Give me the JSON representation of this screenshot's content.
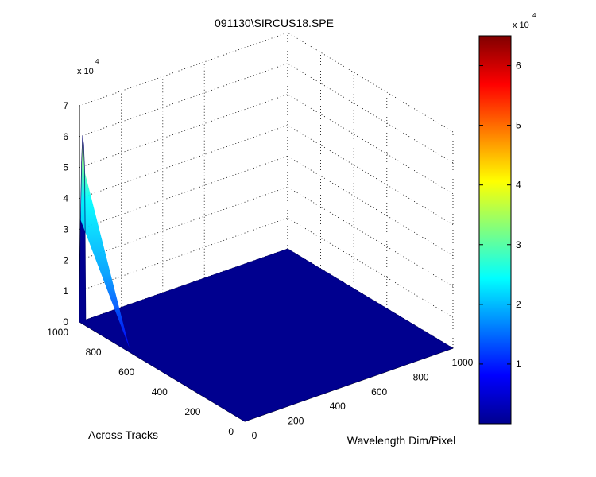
{
  "chart_data": {
    "type": "surface",
    "title": "091130\\SIRCUS18.SPE",
    "xlabel": "Wavelength Dim/Pixel",
    "ylabel": "Across Tracks",
    "zlabel": "",
    "x_ticks": [
      "0",
      "200",
      "400",
      "600",
      "800",
      "1000"
    ],
    "y_ticks": [
      "0",
      "200",
      "400",
      "600",
      "800",
      "1000"
    ],
    "z_ticks": [
      "0",
      "1",
      "2",
      "3",
      "4",
      "5",
      "6",
      "7"
    ],
    "z_multiplier": "x 10",
    "z_multiplier_exp": "4",
    "xlim": [
      0,
      1000
    ],
    "ylim": [
      0,
      1000
    ],
    "zlim": [
      0,
      70000
    ],
    "baseline_value": 0,
    "peak": {
      "x_from": 0,
      "x_to": 30,
      "y": 1000,
      "z_max": 60000,
      "z_profile": [
        0.0,
        0.55,
        0.85,
        1.0,
        0.95,
        0.8,
        0.0
      ]
    },
    "colorbar": {
      "colormap": "jet",
      "range": [
        0,
        65000
      ],
      "ticks": [
        "1",
        "2",
        "3",
        "4",
        "5",
        "6"
      ],
      "tick_values": [
        10000,
        20000,
        30000,
        40000,
        50000,
        60000
      ],
      "multiplier": "x 10",
      "multiplier_exp": "4"
    },
    "grid": true,
    "surface_color": "#00008f"
  }
}
